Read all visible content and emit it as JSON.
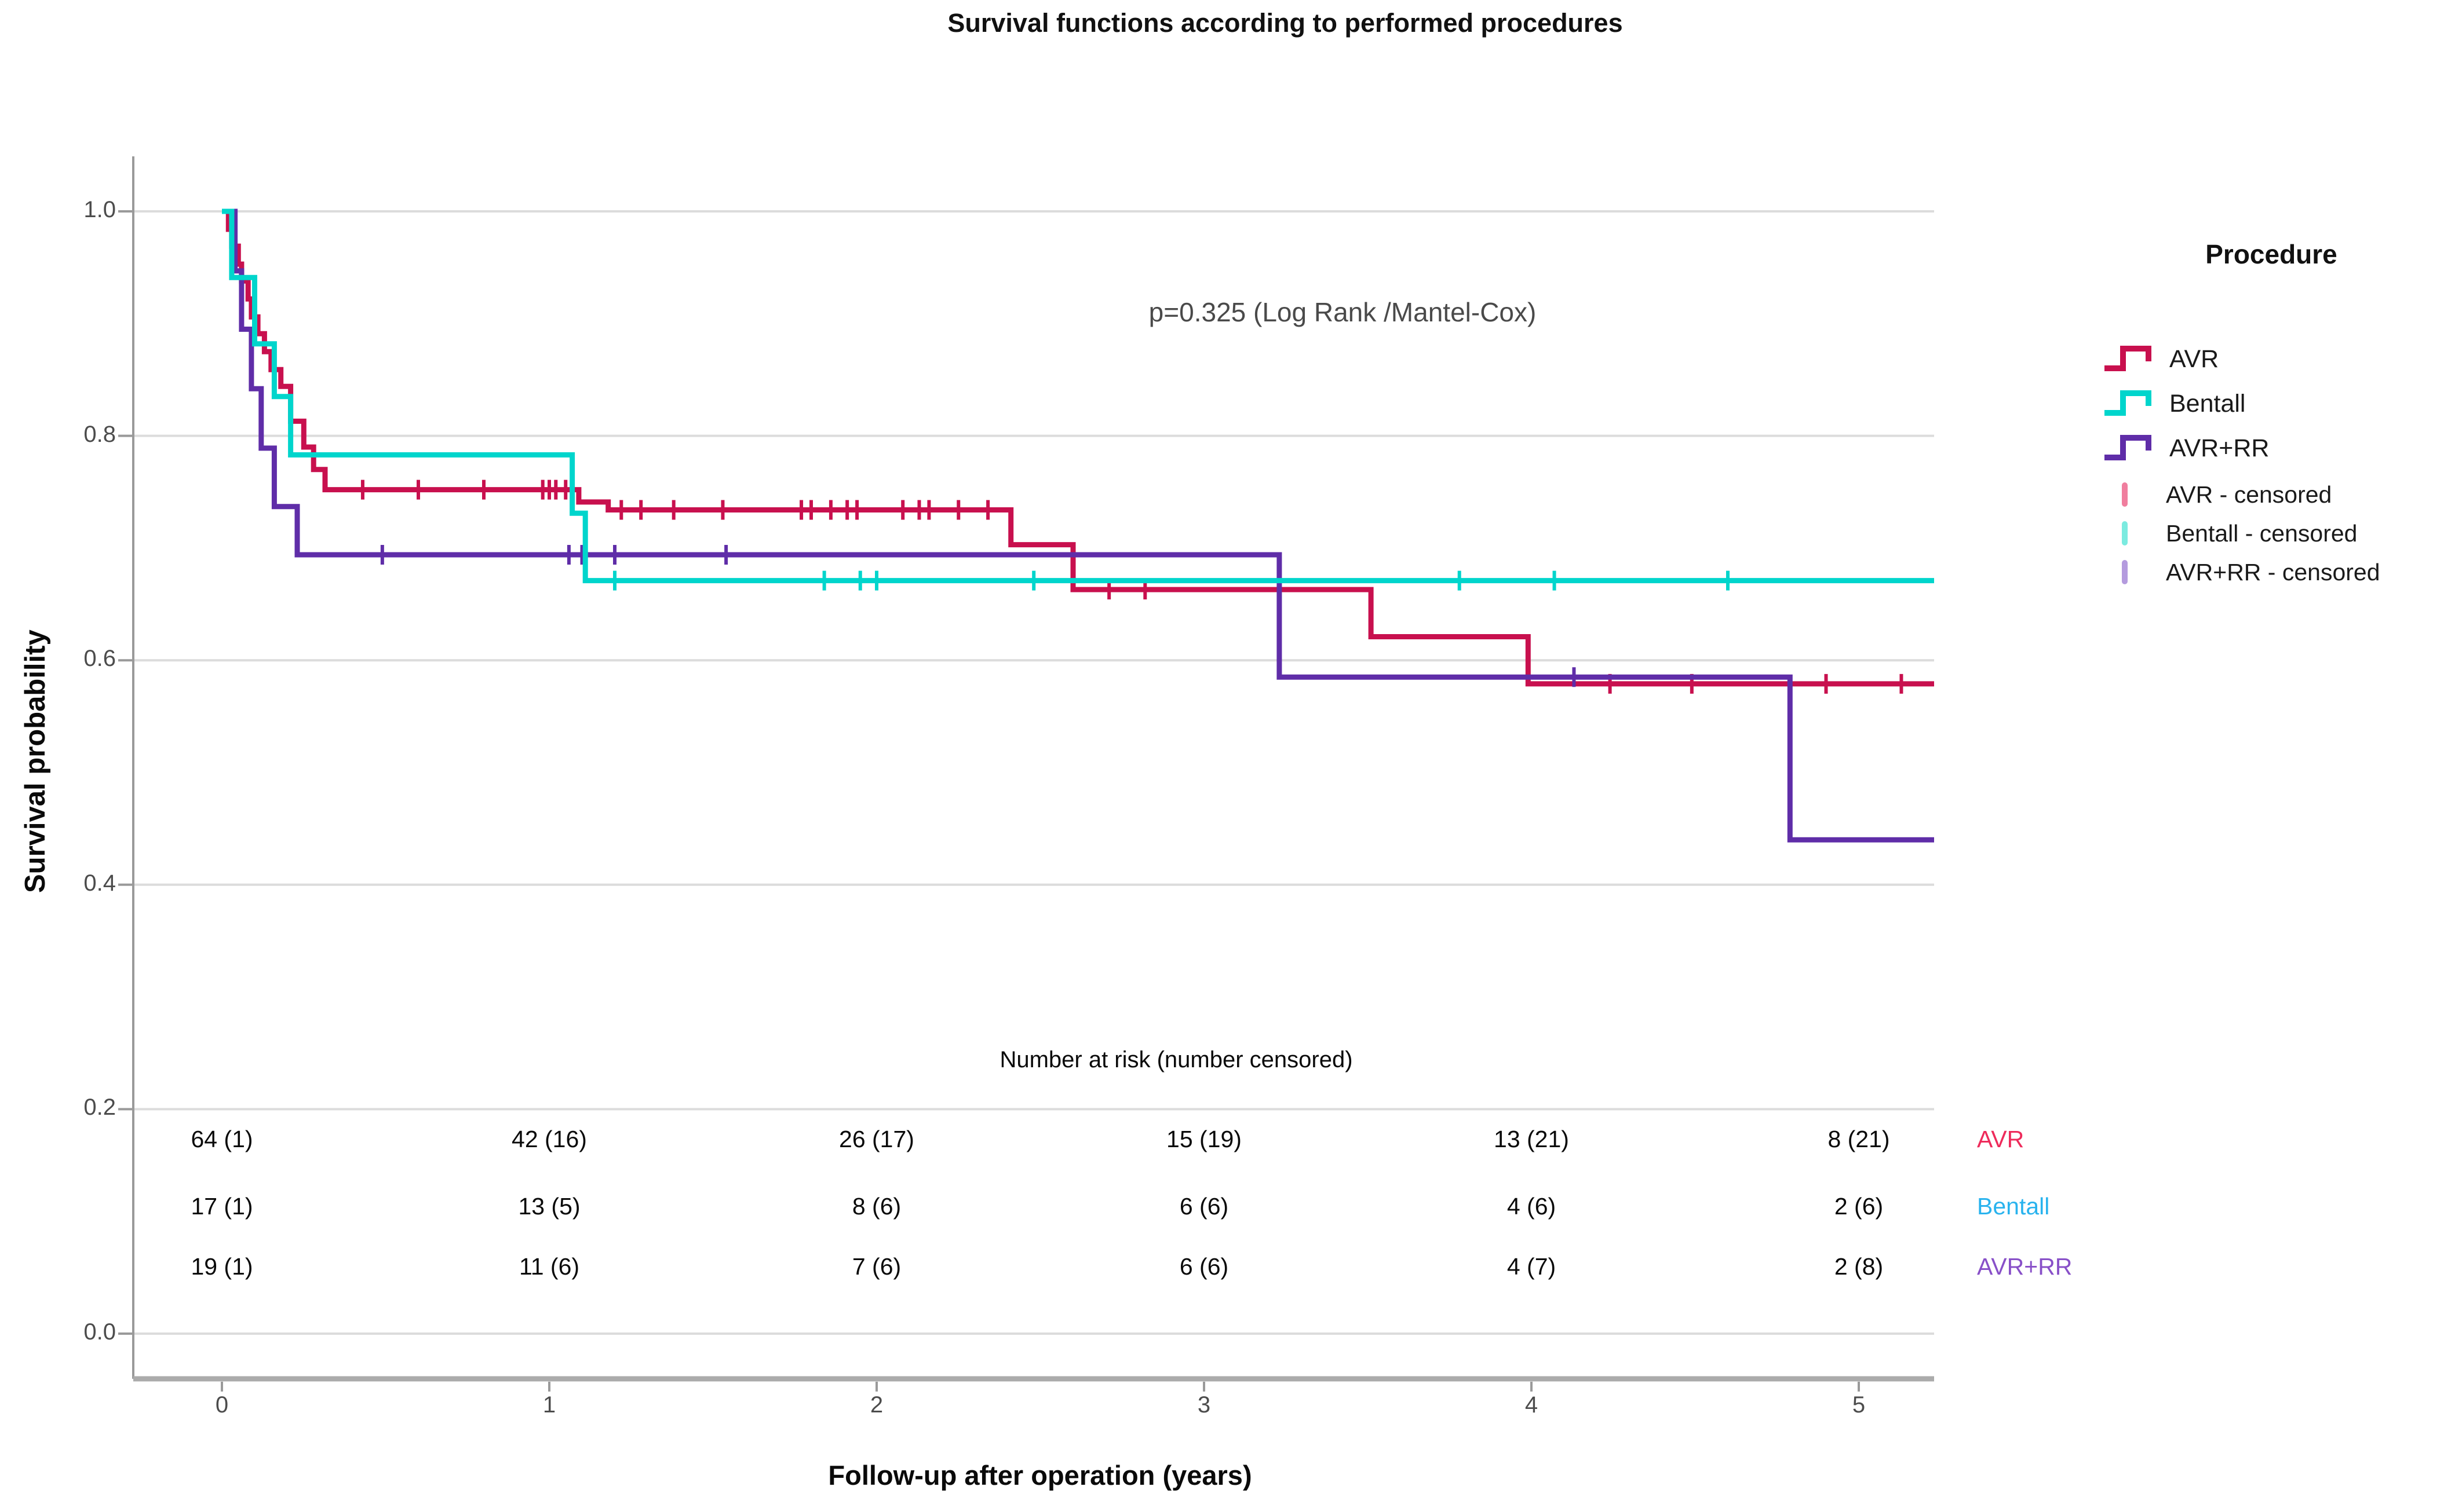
{
  "chart_data": {
    "type": "line",
    "subtype": "kaplan-meier-step",
    "title": "Survival functions according to performed procedures",
    "annotation": "p=0.325 (Log Rank /Mantel-Cox)",
    "xlabel": "Follow-up after operation (years)",
    "ylabel": "Survival probability",
    "xlim": [
      0,
      5.22
    ],
    "ylim": [
      0.0,
      1.05
    ],
    "xticks": [
      "0",
      "1",
      "2",
      "3",
      "4",
      "5"
    ],
    "yticks": [
      "0.0",
      "0.2",
      "0.4",
      "0.6",
      "0.8",
      "1.0"
    ],
    "grid": true,
    "grid_color": "#dcdcdc",
    "axis_color": "#9a9a9a",
    "series": [
      {
        "name": "AVR",
        "color": "#C8104E",
        "points": [
          [
            0.02,
            0.984
          ],
          [
            0.03,
            0.969
          ],
          [
            0.05,
            0.953
          ],
          [
            0.06,
            0.938
          ],
          [
            0.08,
            0.922
          ],
          [
            0.09,
            0.906
          ],
          [
            0.11,
            0.891
          ],
          [
            0.13,
            0.875
          ],
          [
            0.15,
            0.859
          ],
          [
            0.18,
            0.844
          ],
          [
            0.21,
            0.813
          ],
          [
            0.25,
            0.79
          ],
          [
            0.28,
            0.77
          ],
          [
            0.315,
            0.752
          ],
          [
            1.09,
            0.741
          ],
          [
            1.18,
            0.734
          ],
          [
            2.41,
            0.703
          ],
          [
            2.6,
            0.663
          ],
          [
            3.51,
            0.621
          ],
          [
            3.99,
            0.579
          ]
        ],
        "censors": [
          [
            0.43,
            0.752
          ],
          [
            0.6,
            0.752
          ],
          [
            0.8,
            0.752
          ],
          [
            0.98,
            0.752
          ],
          [
            1.0,
            0.752
          ],
          [
            1.02,
            0.752
          ],
          [
            1.05,
            0.752
          ],
          [
            1.22,
            0.734
          ],
          [
            1.28,
            0.734
          ],
          [
            1.38,
            0.734
          ],
          [
            1.53,
            0.734
          ],
          [
            1.77,
            0.734
          ],
          [
            1.8,
            0.734
          ],
          [
            1.86,
            0.734
          ],
          [
            1.91,
            0.734
          ],
          [
            1.94,
            0.734
          ],
          [
            2.08,
            0.734
          ],
          [
            2.13,
            0.734
          ],
          [
            2.16,
            0.734
          ],
          [
            2.25,
            0.734
          ],
          [
            2.34,
            0.734
          ],
          [
            2.71,
            0.663
          ],
          [
            2.82,
            0.663
          ],
          [
            4.24,
            0.579
          ],
          [
            4.49,
            0.579
          ],
          [
            4.9,
            0.579
          ],
          [
            5.13,
            0.579
          ]
        ]
      },
      {
        "name": "Bentall",
        "color": "#00D5CC",
        "points": [
          [
            0.03,
            0.941
          ],
          [
            0.1,
            0.882
          ],
          [
            0.16,
            0.835
          ],
          [
            0.21,
            0.783
          ],
          [
            1.07,
            0.731
          ],
          [
            1.11,
            0.671
          ]
        ],
        "censors": [
          [
            1.2,
            0.671
          ],
          [
            1.84,
            0.671
          ],
          [
            1.95,
            0.671
          ],
          [
            2.0,
            0.671
          ],
          [
            2.48,
            0.671
          ],
          [
            3.78,
            0.671
          ],
          [
            4.07,
            0.671
          ],
          [
            4.6,
            0.671
          ]
        ]
      },
      {
        "name": "AVR+RR",
        "color": "#5F2DA8",
        "points": [
          [
            0.04,
            0.947
          ],
          [
            0.06,
            0.895
          ],
          [
            0.09,
            0.842
          ],
          [
            0.12,
            0.789
          ],
          [
            0.16,
            0.737
          ],
          [
            0.23,
            0.694
          ],
          [
            3.23,
            0.585
          ],
          [
            4.79,
            0.44
          ]
        ],
        "censors": [
          [
            0.49,
            0.694
          ],
          [
            1.06,
            0.694
          ],
          [
            1.1,
            0.694
          ],
          [
            1.2,
            0.694
          ],
          [
            1.54,
            0.694
          ],
          [
            4.13,
            0.585
          ]
        ]
      }
    ],
    "legend": {
      "title": "Procedure",
      "position": "right",
      "items": [
        {
          "label": "AVR",
          "color": "#C8104E"
        },
        {
          "label": "Bentall",
          "color": "#00D5CC"
        },
        {
          "label": "AVR+RR",
          "color": "#5F2DA8"
        }
      ],
      "censored_items": [
        {
          "label": "AVR - censored",
          "color": "#F07E9E"
        },
        {
          "label": "Bentall - censored",
          "color": "#7BEBE0"
        },
        {
          "label": "AVR+RR - censored",
          "color": "#B49BDE"
        }
      ]
    },
    "risk_table": {
      "header": "Number at risk (number censored)",
      "time_columns": [
        "0",
        "1",
        "2",
        "3",
        "4",
        "5"
      ],
      "rows": [
        {
          "label": "AVR",
          "color": "#EE2B5B",
          "values": [
            "64 (1)",
            "42 (16)",
            "26 (17)",
            "15 (19)",
            "13 (21)",
            "8 (21)"
          ]
        },
        {
          "label": "Bentall",
          "color": "#29B3EE",
          "values": [
            "17 (1)",
            "13 (5)",
            "8 (6)",
            "6 (6)",
            "4 (6)",
            "2 (6)"
          ]
        },
        {
          "label": "AVR+RR",
          "color": "#8850C8",
          "values": [
            "19 (1)",
            "11 (6)",
            "7 (6)",
            "6 (6)",
            "4 (7)",
            "2 (8)"
          ]
        }
      ]
    }
  }
}
